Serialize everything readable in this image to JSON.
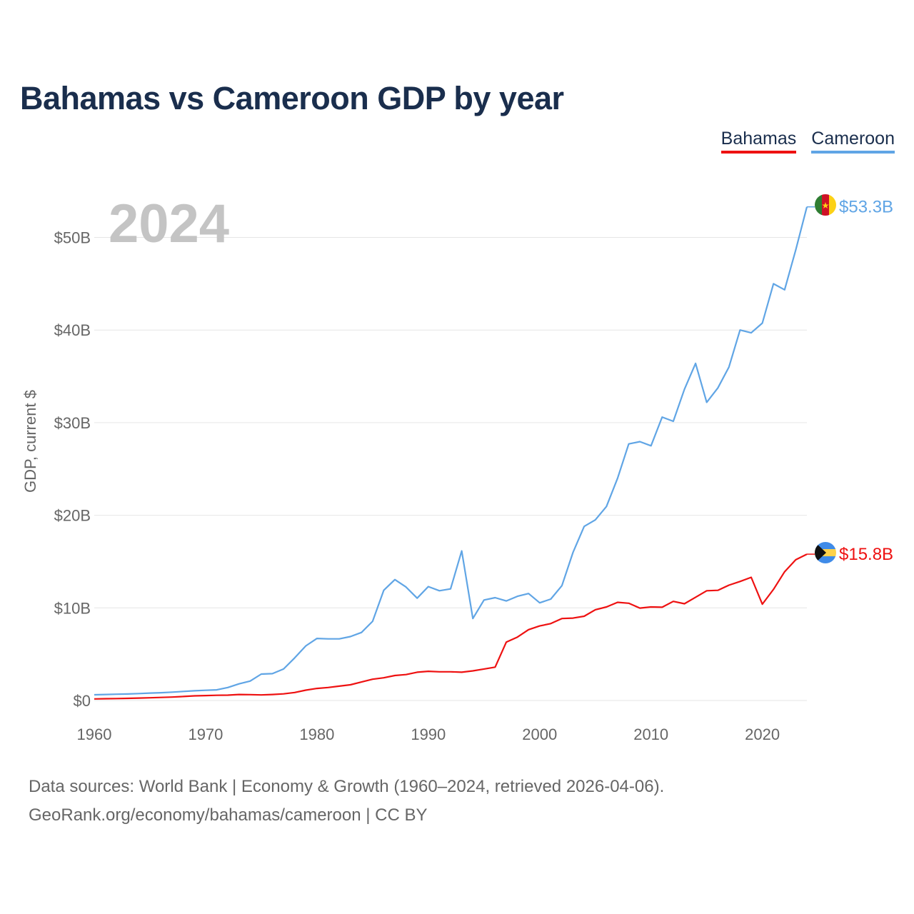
{
  "title": "Bahamas vs Cameroon GDP by year",
  "legend": [
    {
      "label": "Bahamas",
      "color": "#ee1111"
    },
    {
      "label": "Cameroon",
      "color": "#60a5e5"
    }
  ],
  "year_label": "2024",
  "source_line1": "Data sources: World Bank | Economy & Growth (1960–2024, retrieved 2026-04-06).",
  "source_line2": "GeoRank.org/economy/bahamas/cameroon | CC BY",
  "chart_data": {
    "type": "line",
    "title": "Bahamas vs Cameroon GDP by year",
    "xlabel": "",
    "ylabel": "GDP, current $",
    "xlim": [
      1960,
      2024
    ],
    "ylim": [
      0,
      55
    ],
    "y_unit": "billions USD",
    "y_ticks": [
      0,
      10,
      20,
      30,
      40,
      50
    ],
    "y_tick_labels": [
      "$0",
      "$10B",
      "$20B",
      "$30B",
      "$40B",
      "$50B"
    ],
    "x_ticks": [
      1960,
      1970,
      1980,
      1990,
      2000,
      2010,
      2020
    ],
    "x_tick_labels": [
      "1960",
      "1970",
      "1980",
      "1990",
      "2000",
      "2010",
      "2020"
    ],
    "grid": true,
    "legend_position": "top-right",
    "x": [
      1960,
      1961,
      1962,
      1963,
      1964,
      1965,
      1966,
      1967,
      1968,
      1969,
      1970,
      1971,
      1972,
      1973,
      1974,
      1975,
      1976,
      1977,
      1978,
      1979,
      1980,
      1981,
      1982,
      1983,
      1984,
      1985,
      1986,
      1987,
      1988,
      1989,
      1990,
      1991,
      1992,
      1993,
      1994,
      1995,
      1996,
      1997,
      1998,
      1999,
      2000,
      2001,
      2002,
      2003,
      2004,
      2005,
      2006,
      2007,
      2008,
      2009,
      2010,
      2011,
      2012,
      2013,
      2014,
      2015,
      2016,
      2017,
      2018,
      2019,
      2020,
      2021,
      2022,
      2023,
      2024
    ],
    "series": [
      {
        "name": "Bahamas",
        "color": "#ee1111",
        "end_label": "$15.8B",
        "values": [
          0.17,
          0.19,
          0.21,
          0.23,
          0.26,
          0.29,
          0.33,
          0.37,
          0.43,
          0.5,
          0.53,
          0.56,
          0.58,
          0.65,
          0.63,
          0.6,
          0.65,
          0.72,
          0.86,
          1.12,
          1.3,
          1.4,
          1.55,
          1.7,
          2.0,
          2.3,
          2.45,
          2.7,
          2.8,
          3.05,
          3.15,
          3.1,
          3.1,
          3.05,
          3.2,
          3.4,
          3.6,
          6.3,
          6.85,
          7.65,
          8.05,
          8.3,
          8.85,
          8.9,
          9.1,
          9.8,
          10.1,
          10.6,
          10.5,
          9.98,
          10.1,
          10.07,
          10.7,
          10.45,
          11.15,
          11.85,
          11.9,
          12.45,
          12.85,
          13.3,
          10.4,
          12.0,
          13.9,
          15.2,
          15.8
        ]
      },
      {
        "name": "Cameroon",
        "color": "#60a5e5",
        "end_label": "$53.3B",
        "values": [
          0.62,
          0.65,
          0.68,
          0.7,
          0.75,
          0.8,
          0.84,
          0.9,
          0.98,
          1.05,
          1.1,
          1.15,
          1.4,
          1.8,
          2.1,
          2.85,
          2.9,
          3.4,
          4.6,
          5.9,
          6.7,
          6.65,
          6.65,
          6.9,
          7.35,
          8.55,
          11.9,
          13.05,
          12.25,
          11.05,
          12.3,
          11.85,
          12.05,
          16.15,
          8.85,
          10.85,
          11.1,
          10.75,
          11.25,
          11.55,
          10.55,
          10.95,
          12.4,
          16.0,
          18.8,
          19.5,
          20.95,
          24.0,
          27.7,
          27.95,
          27.5,
          30.6,
          30.15,
          33.6,
          36.4,
          32.2,
          33.75,
          36.0,
          40.0,
          39.7,
          40.75,
          45.0,
          44.35,
          48.65,
          53.3
        ]
      }
    ]
  }
}
